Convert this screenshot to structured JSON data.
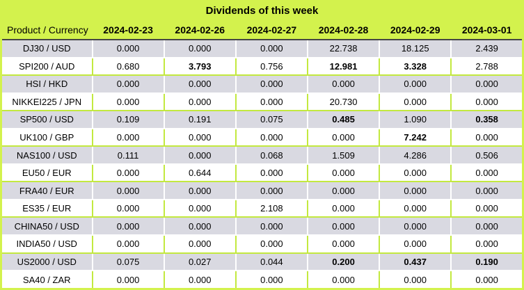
{
  "title": "Dividends of this week",
  "table": {
    "product_header": "Product / Currency",
    "date_headers": [
      "2024-02-23",
      "2024-02-26",
      "2024-02-27",
      "2024-02-28",
      "2024-02-29",
      "2024-03-01"
    ],
    "rows": [
      {
        "product": "DJ30 / USD",
        "values": [
          "0.000",
          "0.000",
          "0.000",
          "22.738",
          "18.125",
          "2.439"
        ],
        "bold": [
          0,
          0,
          0,
          0,
          0,
          0
        ]
      },
      {
        "product": "SPI200 / AUD",
        "values": [
          "0.680",
          "3.793",
          "0.756",
          "12.981",
          "3.328",
          "2.788"
        ],
        "bold": [
          0,
          1,
          0,
          1,
          1,
          0
        ]
      },
      {
        "product": "HSI / HKD",
        "values": [
          "0.000",
          "0.000",
          "0.000",
          "0.000",
          "0.000",
          "0.000"
        ],
        "bold": [
          0,
          0,
          0,
          0,
          0,
          0
        ]
      },
      {
        "product": "NIKKEI225 / JPN",
        "values": [
          "0.000",
          "0.000",
          "0.000",
          "20.730",
          "0.000",
          "0.000"
        ],
        "bold": [
          0,
          0,
          0,
          0,
          0,
          0
        ]
      },
      {
        "product": "SP500 / USD",
        "values": [
          "0.109",
          "0.191",
          "0.075",
          "0.485",
          "1.090",
          "0.358"
        ],
        "bold": [
          0,
          0,
          0,
          1,
          0,
          1
        ]
      },
      {
        "product": "UK100 / GBP",
        "values": [
          "0.000",
          "0.000",
          "0.000",
          "0.000",
          "7.242",
          "0.000"
        ],
        "bold": [
          0,
          0,
          0,
          0,
          1,
          0
        ]
      },
      {
        "product": "NAS100 / USD",
        "values": [
          "0.111",
          "0.000",
          "0.068",
          "1.509",
          "4.286",
          "0.506"
        ],
        "bold": [
          0,
          0,
          0,
          0,
          0,
          0
        ]
      },
      {
        "product": "EU50 / EUR",
        "values": [
          "0.000",
          "0.644",
          "0.000",
          "0.000",
          "0.000",
          "0.000"
        ],
        "bold": [
          0,
          0,
          0,
          0,
          0,
          0
        ]
      },
      {
        "product": "FRA40 / EUR",
        "values": [
          "0.000",
          "0.000",
          "0.000",
          "0.000",
          "0.000",
          "0.000"
        ],
        "bold": [
          0,
          0,
          0,
          0,
          0,
          0
        ]
      },
      {
        "product": "ES35 / EUR",
        "values": [
          "0.000",
          "0.000",
          "2.108",
          "0.000",
          "0.000",
          "0.000"
        ],
        "bold": [
          0,
          0,
          0,
          0,
          0,
          0
        ]
      },
      {
        "product": "CHINA50 / USD",
        "values": [
          "0.000",
          "0.000",
          "0.000",
          "0.000",
          "0.000",
          "0.000"
        ],
        "bold": [
          0,
          0,
          0,
          0,
          0,
          0
        ]
      },
      {
        "product": "INDIA50 / USD",
        "values": [
          "0.000",
          "0.000",
          "0.000",
          "0.000",
          "0.000",
          "0.000"
        ],
        "bold": [
          0,
          0,
          0,
          0,
          0,
          0
        ]
      },
      {
        "product": "US2000 / USD",
        "values": [
          "0.075",
          "0.027",
          "0.044",
          "0.200",
          "0.437",
          "0.190"
        ],
        "bold": [
          0,
          0,
          0,
          1,
          1,
          1
        ]
      },
      {
        "product": "SA40 / ZAR",
        "values": [
          "0.000",
          "0.000",
          "0.000",
          "0.000",
          "0.000",
          "0.000"
        ],
        "bold": [
          0,
          0,
          0,
          0,
          0,
          0
        ]
      }
    ]
  },
  "colors": {
    "background": "#d3f24d",
    "border_green": "#c3e93f",
    "row_gray": "#d9d9e1",
    "row_white": "#ffffff",
    "header_underline": "#454545",
    "text": "#000000"
  }
}
